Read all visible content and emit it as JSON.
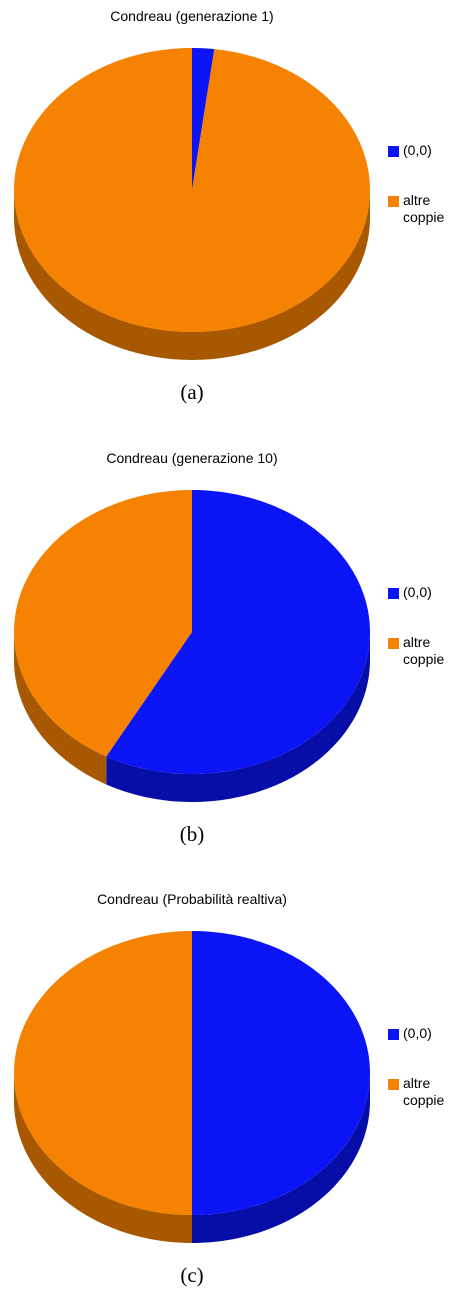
{
  "chart_data": [
    {
      "type": "pie",
      "title": "Condreau (generazione 1)",
      "categories": [
        "(0,0)",
        "altre coppie"
      ],
      "values": [
        2,
        98
      ],
      "colors": [
        "#0a14f5",
        "#f58200"
      ],
      "caption": "(a)"
    },
    {
      "type": "pie",
      "title": "Condreau (generazione 10)",
      "categories": [
        "(0,0)",
        "altre coppie"
      ],
      "values": [
        58,
        42
      ],
      "colors": [
        "#0a14f5",
        "#f58200"
      ],
      "caption": "(b)"
    },
    {
      "type": "pie",
      "title": "Condreau (Probabilità realtiva)",
      "categories": [
        "(0,0)",
        "altre coppie"
      ],
      "values": [
        50,
        50
      ],
      "colors": [
        "#0a14f5",
        "#f58200"
      ],
      "caption": "(c)"
    }
  ]
}
